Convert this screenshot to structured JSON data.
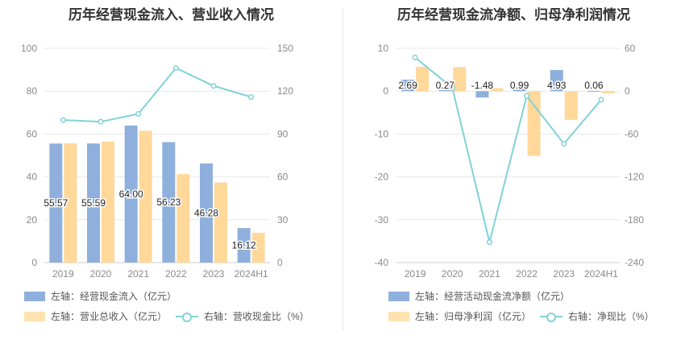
{
  "colors": {
    "blue": "#8fb0dd",
    "orange": "#ffd89a",
    "line": "#7fd3d8",
    "grid": "#e8e8e8"
  },
  "charts": [
    {
      "title": "历年经营现金流入、营业收入情况",
      "legend": {
        "bar1": "左轴：经营现金流入（亿元）",
        "bar2": "左轴：营业总收入（亿元）",
        "line": "右轴：营收现金比（%）"
      }
    },
    {
      "title": "历年经营现金流净额、归母净利润情况",
      "legend": {
        "bar1": "左轴：经营活动现金流净额（亿元）",
        "bar2": "左轴：归母净利润（亿元）",
        "line": "右轴：净现比（%）"
      }
    }
  ],
  "chart_data": [
    {
      "type": "bar",
      "title": "历年经营现金流入、营业收入情况",
      "categories": [
        "2019",
        "2020",
        "2021",
        "2022",
        "2023",
        "2024H1"
      ],
      "left_axis": {
        "ylim": [
          0,
          100
        ],
        "ticks": [
          "0",
          "20",
          "40",
          "60",
          "80",
          "100"
        ]
      },
      "right_axis": {
        "ylim": [
          0,
          150
        ],
        "ticks": [
          "0",
          "30",
          "60",
          "90",
          "120",
          "150"
        ]
      },
      "series": [
        {
          "name": "左轴：经营现金流入（亿元）",
          "axis": "left",
          "kind": "bar",
          "values": [
            55.57,
            55.59,
            64.0,
            56.23,
            46.28,
            16.12
          ],
          "labels": [
            "55.57",
            "55.59",
            "64.00",
            "56.23",
            "46.28",
            "16.12"
          ]
        },
        {
          "name": "左轴：营业总收入（亿元）",
          "axis": "left",
          "kind": "bar",
          "values": [
            55.7,
            56.4,
            61.5,
            41.3,
            37.4,
            13.9
          ]
        },
        {
          "name": "右轴：营收现金比（%）",
          "axis": "right",
          "kind": "line",
          "values": [
            99.8,
            98.6,
            104.1,
            136.2,
            123.7,
            115.9
          ]
        }
      ],
      "grid": true,
      "legend_position": "bottom"
    },
    {
      "type": "bar",
      "title": "历年经营现金流净额、归母净利润情况",
      "categories": [
        "2019",
        "2020",
        "2021",
        "2022",
        "2023",
        "2024H1"
      ],
      "left_axis": {
        "ylim": [
          -40,
          10
        ],
        "ticks": [
          "-40",
          "-30",
          "-20",
          "-10",
          "0",
          "10"
        ]
      },
      "right_axis": {
        "ylim": [
          -240,
          60
        ],
        "ticks": [
          "-240",
          "-180",
          "-120",
          "-60",
          "0",
          "60"
        ]
      },
      "series": [
        {
          "name": "左轴：经营活动现金流净额（亿元）",
          "axis": "left",
          "kind": "bar",
          "values": [
            2.69,
            0.27,
            -1.48,
            0.99,
            4.93,
            0.06
          ],
          "labels": [
            "2.69",
            "0.27",
            "-1.48",
            "0.99",
            "4.93",
            "0.06"
          ]
        },
        {
          "name": "左轴：归母净利润（亿元）",
          "axis": "left",
          "kind": "bar",
          "values": [
            5.7,
            5.6,
            0.7,
            -15.1,
            -6.7,
            -0.5
          ]
        },
        {
          "name": "右轴：净现比（%）",
          "axis": "right",
          "kind": "line",
          "values": [
            47.2,
            4.8,
            -211.4,
            -6.6,
            -73.6,
            -12.0
          ]
        }
      ],
      "grid": true,
      "legend_position": "bottom"
    }
  ]
}
